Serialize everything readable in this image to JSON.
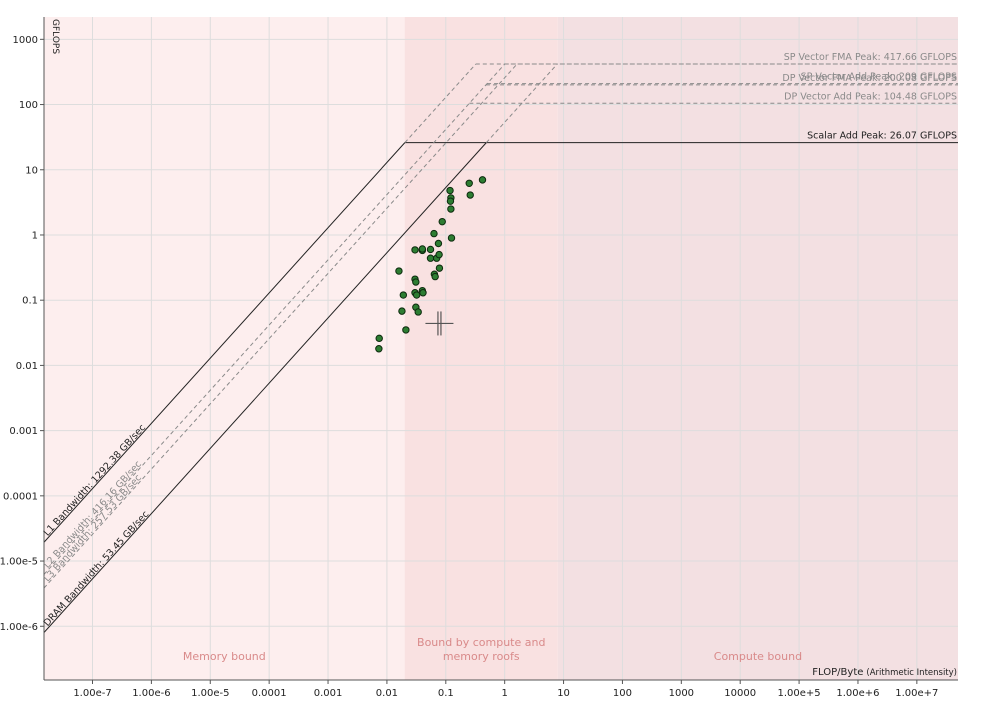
{
  "chart_data": {
    "type": "scatter",
    "scale": "log-log",
    "title": "",
    "ylabel": "GFLOPS",
    "xlabel": "FLOP/Byte",
    "xlabel_suffix": "(Arithmetic Intensity)",
    "xlim": [
      1.5e-08,
      50000000.0
    ],
    "ylim": [
      1.5e-07,
      2200
    ],
    "x_ticks": [
      {
        "value": 1e-07,
        "label": "1.00e-7"
      },
      {
        "value": 1e-06,
        "label": "1.00e-6"
      },
      {
        "value": 1e-05,
        "label": "1.00e-5"
      },
      {
        "value": 0.0001,
        "label": "0.0001"
      },
      {
        "value": 0.001,
        "label": "0.001"
      },
      {
        "value": 0.01,
        "label": "0.01"
      },
      {
        "value": 0.1,
        "label": "0.1"
      },
      {
        "value": 1,
        "label": "1"
      },
      {
        "value": 10,
        "label": "10"
      },
      {
        "value": 100,
        "label": "100"
      },
      {
        "value": 1000,
        "label": "1000"
      },
      {
        "value": 10000,
        "label": "10000"
      },
      {
        "value": 100000.0,
        "label": "1.00e+5"
      },
      {
        "value": 1000000.0,
        "label": "1.00e+6"
      },
      {
        "value": 10000000.0,
        "label": "1.00e+7"
      }
    ],
    "y_ticks": [
      {
        "value": 1e-06,
        "label": "1.00e-6"
      },
      {
        "value": 1e-05,
        "label": "1.00e-5"
      },
      {
        "value": 0.0001,
        "label": "0.0001"
      },
      {
        "value": 0.001,
        "label": "0.001"
      },
      {
        "value": 0.01,
        "label": "0.01"
      },
      {
        "value": 0.1,
        "label": "0.1"
      },
      {
        "value": 1,
        "label": "1"
      },
      {
        "value": 10,
        "label": "10"
      },
      {
        "value": 100,
        "label": "100"
      },
      {
        "value": 1000,
        "label": "1000"
      }
    ],
    "regions": [
      {
        "label": "Memory bound",
        "x_from": 1.5e-08,
        "x_to": 0.02,
        "color": "#fdeeee"
      },
      {
        "label": "Bound by compute and memory roofs",
        "x_from": 0.02,
        "x_to": 8,
        "color": "#f9e1e1"
      },
      {
        "label": "Compute bound",
        "x_from": 8,
        "x_to": 50000000.0,
        "color": "#f3e0e2"
      }
    ],
    "compute_roofs": [
      {
        "label": "SP Vector FMA Peak: 417.66 GFLOPS",
        "value": 417.66,
        "style": "dashed",
        "color": "#8a8a8a"
      },
      {
        "label": "SP Vector Add Peak: 209 GFLOPS",
        "value": 209,
        "style": "dashed",
        "color": "#8a8a8a"
      },
      {
        "label": "DP Vector FMA Peak: 200.08 GFLOPS",
        "value": 200.08,
        "style": "dashed",
        "color": "#8a8a8a"
      },
      {
        "label": "DP Vector Add Peak: 104.48 GFLOPS",
        "value": 104.48,
        "style": "dashed",
        "color": "#8a8a8a"
      },
      {
        "label": "Scalar Add Peak: 26.07 GFLOPS",
        "value": 26.07,
        "style": "solid",
        "color": "#222222"
      }
    ],
    "memory_roofs": [
      {
        "label": "L1 Bandwidth: 1292.38 GB/sec",
        "value": 1292.38,
        "style": "solid",
        "color": "#222222"
      },
      {
        "label": "L2 Bandwidth: 416.16 GB/sec",
        "value": 416.16,
        "style": "dashed",
        "color": "#8a8a8a"
      },
      {
        "label": "L3 Bandwidth: 257.53 GB/sec",
        "value": 257.53,
        "style": "dashed",
        "color": "#8a8a8a"
      },
      {
        "label": "DRAM Bandwidth: 53.45 GB/sec",
        "value": 53.45,
        "style": "solid",
        "color": "#222222"
      }
    ],
    "points": [
      {
        "x": 0.0074,
        "y": 0.026
      },
      {
        "x": 0.0073,
        "y": 0.018
      },
      {
        "x": 0.016,
        "y": 0.28
      },
      {
        "x": 0.019,
        "y": 0.12
      },
      {
        "x": 0.018,
        "y": 0.068
      },
      {
        "x": 0.021,
        "y": 0.035
      },
      {
        "x": 0.03,
        "y": 0.59
      },
      {
        "x": 0.03,
        "y": 0.21
      },
      {
        "x": 0.031,
        "y": 0.19
      },
      {
        "x": 0.03,
        "y": 0.13
      },
      {
        "x": 0.032,
        "y": 0.12
      },
      {
        "x": 0.031,
        "y": 0.078
      },
      {
        "x": 0.034,
        "y": 0.066
      },
      {
        "x": 0.04,
        "y": 0.58
      },
      {
        "x": 0.04,
        "y": 0.61
      },
      {
        "x": 0.04,
        "y": 0.14
      },
      {
        "x": 0.041,
        "y": 0.13
      },
      {
        "x": 0.055,
        "y": 0.6
      },
      {
        "x": 0.055,
        "y": 0.44
      },
      {
        "x": 0.063,
        "y": 1.05
      },
      {
        "x": 0.064,
        "y": 0.25
      },
      {
        "x": 0.066,
        "y": 0.23
      },
      {
        "x": 0.07,
        "y": 0.44
      },
      {
        "x": 0.075,
        "y": 0.74
      },
      {
        "x": 0.077,
        "y": 0.5
      },
      {
        "x": 0.078,
        "y": 0.31
      },
      {
        "x": 0.087,
        "y": 1.6
      },
      {
        "x": 0.118,
        "y": 4.8
      },
      {
        "x": 0.122,
        "y": 3.7
      },
      {
        "x": 0.12,
        "y": 3.3
      },
      {
        "x": 0.122,
        "y": 2.5
      },
      {
        "x": 0.125,
        "y": 0.9
      },
      {
        "x": 0.25,
        "y": 6.2
      },
      {
        "x": 0.26,
        "y": 4.1
      },
      {
        "x": 0.42,
        "y": 7.0
      }
    ],
    "crosshair": {
      "x": 0.078,
      "y": 0.044
    },
    "colors": {
      "point_fill": "#2d7d32",
      "point_stroke": "#0d2a0e",
      "grid": "#dddddd",
      "axis": "#555555"
    }
  }
}
